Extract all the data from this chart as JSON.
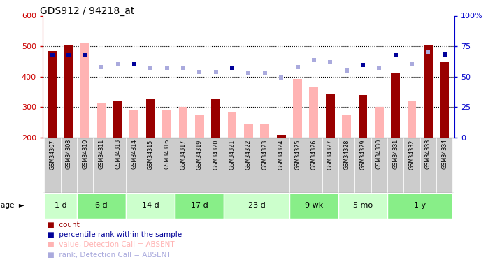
{
  "title": "GDS912 / 94218_at",
  "samples": [
    "GSM34307",
    "GSM34308",
    "GSM34310",
    "GSM34311",
    "GSM34313",
    "GSM34314",
    "GSM34315",
    "GSM34316",
    "GSM34317",
    "GSM34319",
    "GSM34320",
    "GSM34321",
    "GSM34322",
    "GSM34323",
    "GSM34324",
    "GSM34325",
    "GSM34326",
    "GSM34327",
    "GSM34328",
    "GSM34329",
    "GSM34330",
    "GSM34331",
    "GSM34332",
    "GSM34333",
    "GSM34334"
  ],
  "count_present": [
    484,
    502,
    null,
    null,
    318,
    null,
    326,
    null,
    null,
    null,
    326,
    null,
    null,
    null,
    208,
    null,
    null,
    345,
    null,
    340,
    null,
    411,
    null,
    502,
    448
  ],
  "count_absent": [
    null,
    null,
    511,
    311,
    null,
    292,
    null,
    290,
    300,
    275,
    null,
    283,
    243,
    246,
    null,
    393,
    367,
    null,
    273,
    null,
    301,
    null,
    322,
    null,
    null
  ],
  "rank_present": [
    470,
    471,
    470,
    null,
    null,
    440,
    null,
    null,
    null,
    null,
    null,
    428,
    null,
    null,
    null,
    null,
    null,
    null,
    null,
    438,
    null,
    470,
    null,
    482,
    472
  ],
  "rank_absent": [
    null,
    null,
    null,
    432,
    440,
    null,
    428,
    430,
    430,
    416,
    415,
    null,
    410,
    410,
    396,
    432,
    455,
    447,
    420,
    null,
    430,
    null,
    440,
    482,
    null
  ],
  "age_groups": [
    {
      "label": "1 d",
      "start": 0,
      "end": 2
    },
    {
      "label": "6 d",
      "start": 2,
      "end": 5
    },
    {
      "label": "14 d",
      "start": 5,
      "end": 8
    },
    {
      "label": "17 d",
      "start": 8,
      "end": 11
    },
    {
      "label": "23 d",
      "start": 11,
      "end": 15
    },
    {
      "label": "9 wk",
      "start": 15,
      "end": 18
    },
    {
      "label": "5 mo",
      "start": 18,
      "end": 21
    },
    {
      "label": "1 y",
      "start": 21,
      "end": 25
    }
  ],
  "ylim_left": [
    200,
    600
  ],
  "yticks_left": [
    200,
    300,
    400,
    500,
    600
  ],
  "yticks_right": [
    0,
    25,
    50,
    75,
    100
  ],
  "color_count_present": "#990000",
  "color_count_absent": "#FFB3B3",
  "color_rank_present": "#000099",
  "color_rank_absent": "#AAAADD",
  "color_axis_left": "#CC0000",
  "color_axis_right": "#0000CC",
  "legend": [
    {
      "color": "#990000",
      "label": "count"
    },
    {
      "color": "#000099",
      "label": "percentile rank within the sample"
    },
    {
      "color": "#FFB3B3",
      "label": "value, Detection Call = ABSENT"
    },
    {
      "color": "#AAAADD",
      "label": "rank, Detection Call = ABSENT"
    }
  ],
  "age_colors": [
    "#CCFFCC",
    "#88EE88"
  ]
}
